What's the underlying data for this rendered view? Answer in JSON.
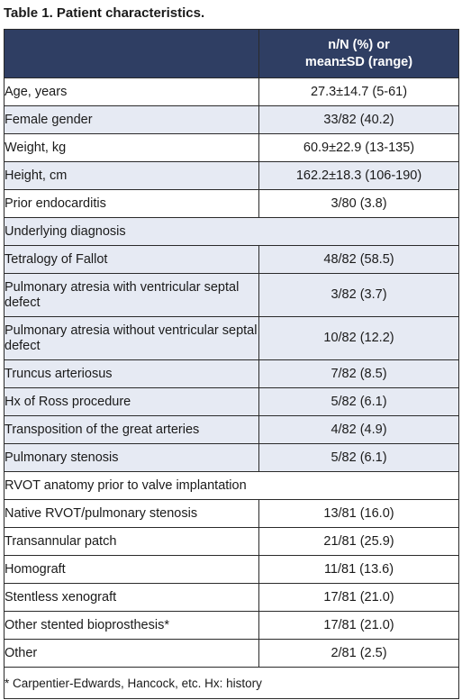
{
  "title": "Table 1. Patient characteristics.",
  "header": {
    "label": "",
    "value_line1": "n/N (%) or",
    "value_line2": "mean±SD (range)"
  },
  "rows": [
    {
      "label": "Age, years",
      "value": "27.3±14.7 (5-61)",
      "indent": false,
      "shade": false
    },
    {
      "label": "Female gender",
      "value": "33/82 (40.2)",
      "indent": false,
      "shade": true
    },
    {
      "label": "Weight, kg",
      "value": "60.9±22.9 (13-135)",
      "indent": false,
      "shade": false
    },
    {
      "label": "Height, cm",
      "value": "162.2±18.3 (106-190)",
      "indent": false,
      "shade": true
    },
    {
      "label": "Prior endocarditis",
      "value": "3/80 (3.8)",
      "indent": false,
      "shade": false
    },
    {
      "label": "Underlying diagnosis",
      "value": "",
      "indent": false,
      "shade": true,
      "span": true
    },
    {
      "label": "Tetralogy of Fallot",
      "value": "48/82 (58.5)",
      "indent": true,
      "shade": true
    },
    {
      "label": "Pulmonary atresia with ventricular septal defect",
      "value": "3/82 (3.7)",
      "indent": true,
      "shade": true,
      "tall": true
    },
    {
      "label": "Pulmonary atresia without ventricular septal defect",
      "value": "10/82 (12.2)",
      "indent": true,
      "shade": true,
      "tall": true
    },
    {
      "label": "Truncus arteriosus",
      "value": "7/82 (8.5)",
      "indent": true,
      "shade": true
    },
    {
      "label": "Hx of Ross procedure",
      "value": "5/82 (6.1)",
      "indent": true,
      "shade": true
    },
    {
      "label": "Transposition of the great arteries",
      "value": "4/82 (4.9)",
      "indent": true,
      "shade": true
    },
    {
      "label": "Pulmonary stenosis",
      "value": "5/82 (6.1)",
      "indent": true,
      "shade": true
    },
    {
      "label": "RVOT anatomy prior to valve implantation",
      "value": "",
      "indent": false,
      "shade": false,
      "span": true
    },
    {
      "label": "Native RVOT/pulmonary stenosis",
      "value": "13/81 (16.0)",
      "indent": true,
      "shade": false
    },
    {
      "label": "Transannular patch",
      "value": "21/81 (25.9)",
      "indent": true,
      "shade": false
    },
    {
      "label": "Homograft",
      "value": "11/81 (13.6)",
      "indent": true,
      "shade": false
    },
    {
      "label": "Stentless xenograft",
      "value": "17/81 (21.0)",
      "indent": true,
      "shade": false
    },
    {
      "label": "Other stented bioprosthesis*",
      "value": "17/81 (21.0)",
      "indent": true,
      "shade": false
    },
    {
      "label": "Other",
      "value": "2/81 (2.5)",
      "indent": true,
      "shade": false
    }
  ],
  "footnote": "* Carpentier-Edwards, Hancock, etc. Hx: history",
  "colors": {
    "header_bg": "#2f3e63",
    "shade_bg": "#e6eaf3",
    "border": "#2a2a2a"
  }
}
